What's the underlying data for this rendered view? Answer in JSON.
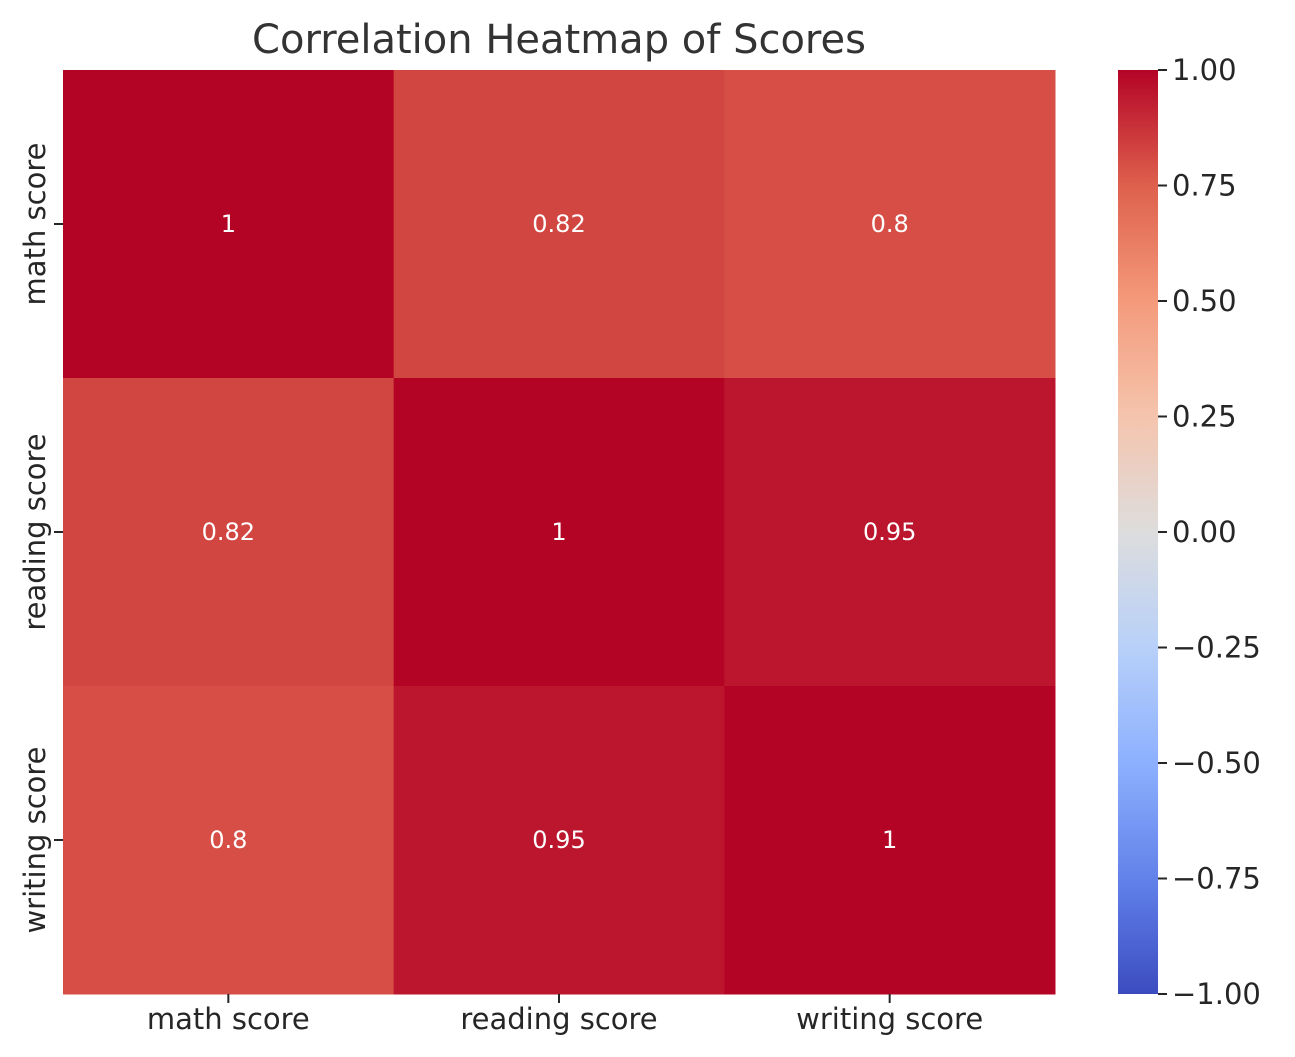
{
  "chart_data": {
    "type": "heatmap",
    "title": "Correlation Heatmap of Scores",
    "xlabel": "",
    "ylabel": "",
    "x_categories": [
      "math score",
      "reading score",
      "writing score"
    ],
    "y_categories": [
      "math score",
      "reading score",
      "writing score"
    ],
    "values": [
      [
        1.0,
        0.82,
        0.8
      ],
      [
        0.82,
        1.0,
        0.95
      ],
      [
        0.8,
        0.95,
        1.0
      ]
    ],
    "annotations": [
      [
        "1",
        "0.82",
        "0.8"
      ],
      [
        "0.82",
        "1",
        "0.95"
      ],
      [
        "0.8",
        "0.95",
        "1"
      ]
    ],
    "colormap": "coolwarm",
    "vmin": -1.0,
    "vmax": 1.0,
    "colorbar": {
      "ticks": [
        1.0,
        0.75,
        0.5,
        0.25,
        0.0,
        -0.25,
        -0.5,
        -0.75,
        -1.0
      ],
      "tick_labels": [
        "1.00",
        "0.75",
        "0.50",
        "0.25",
        "0.00",
        "−0.25",
        "−0.50",
        "−0.75",
        "−1.00"
      ],
      "placement": "right"
    },
    "grid": false
  }
}
